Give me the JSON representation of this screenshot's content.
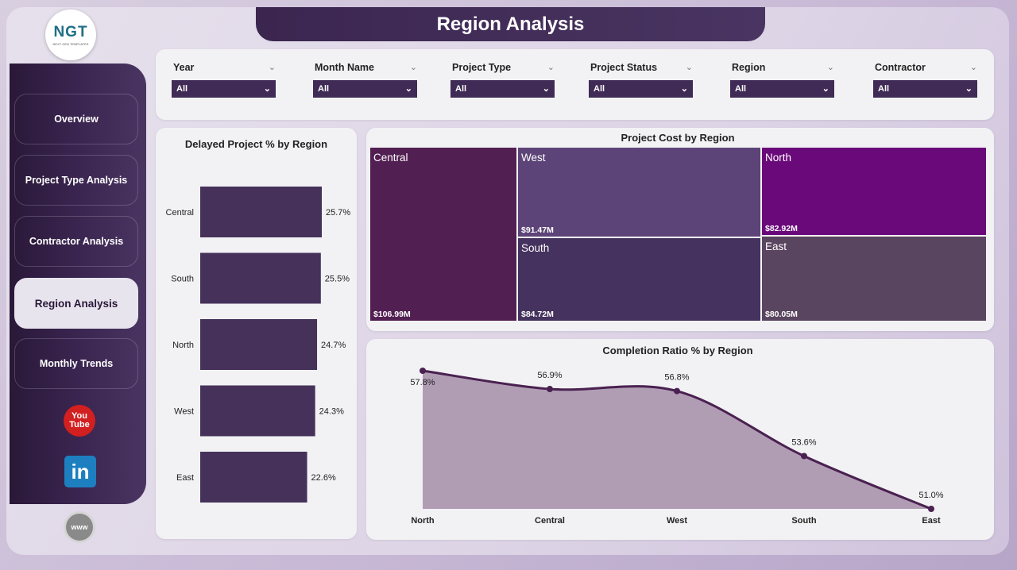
{
  "brand": {
    "logo_text": "NGT",
    "logo_subtext": "NEXT GEN TEMPLATES"
  },
  "page": {
    "title": "Region Analysis"
  },
  "sidebar": {
    "items": [
      {
        "label": "Overview",
        "active": false
      },
      {
        "label": "Project Type Analysis",
        "active": false
      },
      {
        "label": "Contractor Analysis",
        "active": false
      },
      {
        "label": "Region Analysis",
        "active": true
      },
      {
        "label": "Monthly Trends",
        "active": false
      }
    ],
    "social": {
      "youtube_top": "You",
      "youtube_bottom": "Tube",
      "linkedin": "in",
      "web": "www"
    }
  },
  "filters": [
    {
      "label": "Year",
      "value": "All"
    },
    {
      "label": "Month Name",
      "value": "All"
    },
    {
      "label": "Project Type",
      "value": "All"
    },
    {
      "label": "Project Status",
      "value": "All"
    },
    {
      "label": "Region",
      "value": "All"
    },
    {
      "label": "Contractor",
      "value": "All"
    }
  ],
  "chart_data": [
    {
      "type": "bar",
      "orientation": "horizontal",
      "title": "Delayed Project % by Region",
      "categories": [
        "Central",
        "South",
        "North",
        "West",
        "East"
      ],
      "values": [
        25.7,
        25.5,
        24.7,
        24.3,
        22.6
      ],
      "labels": [
        "25.7%",
        "25.5%",
        "24.7%",
        "24.3%",
        "22.6%"
      ],
      "color": "#45315a"
    },
    {
      "type": "treemap",
      "title": "Project Cost by Region",
      "items": [
        {
          "name": "Central",
          "value": 106.99,
          "label": "$106.99M",
          "color": "#521f52"
        },
        {
          "name": "West",
          "value": 91.47,
          "label": "$91.47M",
          "color": "#5d4478"
        },
        {
          "name": "South",
          "value": 84.72,
          "label": "$84.72M",
          "color": "#45325e"
        },
        {
          "name": "North",
          "value": 82.92,
          "label": "$82.92M",
          "color": "#6a0a7a"
        },
        {
          "name": "East",
          "value": 80.05,
          "label": "$80.05M",
          "color": "#5a4560"
        }
      ]
    },
    {
      "type": "area",
      "title": "Completion Ratio % by Region",
      "categories": [
        "North",
        "Central",
        "West",
        "South",
        "East"
      ],
      "values": [
        57.8,
        56.9,
        56.8,
        53.6,
        51.0
      ],
      "labels": [
        "57.8%",
        "56.9%",
        "56.8%",
        "53.6%",
        "51.0%"
      ],
      "ylim": [
        51.0,
        57.8
      ],
      "line_color": "#4a2150",
      "fill_color": "#b09db4"
    }
  ]
}
